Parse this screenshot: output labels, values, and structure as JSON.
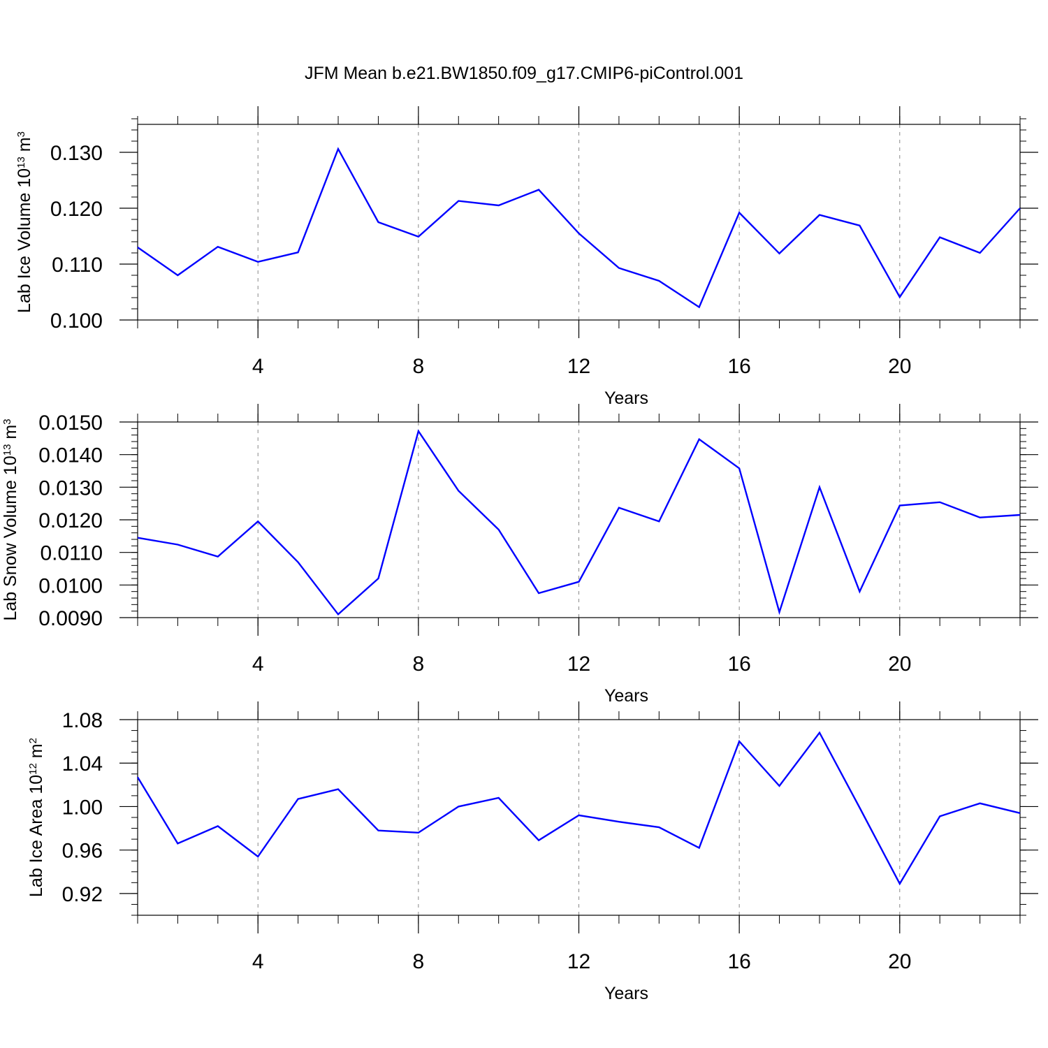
{
  "title": "JFM Mean b.e21.BW1850.f09_g17.CMIP6-piControl.001",
  "colors": {
    "line": "#0000ff",
    "axis": "#000000",
    "grid": "#888888",
    "background": "#ffffff"
  },
  "chart_data": [
    {
      "type": "line",
      "xlabel": "Years",
      "ylabel": {
        "text": "Lab Ice Volume 10",
        "exponent": "13",
        "unit": " m",
        "unit_exponent": "3"
      },
      "xlim": [
        1,
        23
      ],
      "ylim": [
        0.1,
        0.135
      ],
      "xticks": [
        4,
        8,
        12,
        16,
        20
      ],
      "xtick_labels": [
        "4",
        "8",
        "12",
        "16",
        "20"
      ],
      "yticks": [
        0.1,
        0.11,
        0.12,
        0.13
      ],
      "ytick_labels": [
        "0.100",
        "0.110",
        "0.120",
        "0.130"
      ],
      "y_minor_step": 0.002,
      "grid": "vertical dashed at major x ticks",
      "series": [
        {
          "x": [
            1,
            2,
            3,
            4,
            5,
            6,
            7,
            8,
            9,
            10,
            11,
            12,
            13,
            14,
            15,
            16,
            17,
            18,
            19,
            20,
            21,
            22,
            23
          ],
          "values": [
            0.113,
            0.108,
            0.1131,
            0.1104,
            0.1121,
            0.1306,
            0.1175,
            0.1149,
            0.1213,
            0.1205,
            0.1233,
            0.1155,
            0.1093,
            0.107,
            0.1023,
            0.1192,
            0.1119,
            0.1188,
            0.1169,
            0.1041,
            0.1148,
            0.112,
            0.12
          ]
        }
      ]
    },
    {
      "type": "line",
      "xlabel": "Years",
      "ylabel": {
        "text": "Lab Snow Volume 10",
        "exponent": "13",
        "unit": " m",
        "unit_exponent": "3"
      },
      "xlim": [
        1,
        23
      ],
      "ylim": [
        0.009,
        0.015
      ],
      "xticks": [
        4,
        8,
        12,
        16,
        20
      ],
      "xtick_labels": [
        "4",
        "8",
        "12",
        "16",
        "20"
      ],
      "yticks": [
        0.009,
        0.01,
        0.011,
        0.012,
        0.013,
        0.014,
        0.015
      ],
      "ytick_labels": [
        "0.0090",
        "0.0100",
        "0.0110",
        "0.0120",
        "0.0130",
        "0.0140",
        "0.0150"
      ],
      "y_minor_step": 0.0002,
      "grid": "vertical dashed at major x ticks",
      "series": [
        {
          "x": [
            1,
            2,
            3,
            4,
            5,
            6,
            7,
            8,
            9,
            10,
            11,
            12,
            13,
            14,
            15,
            16,
            17,
            18,
            19,
            20,
            21,
            22,
            23
          ],
          "values": [
            0.01145,
            0.01124,
            0.01087,
            0.01195,
            0.0107,
            0.0091,
            0.0102,
            0.01472,
            0.01289,
            0.0117,
            0.00975,
            0.0101,
            0.01237,
            0.01195,
            0.01447,
            0.01358,
            0.00917,
            0.013,
            0.0098,
            0.01244,
            0.01254,
            0.01207,
            0.01215
          ]
        }
      ]
    },
    {
      "type": "line",
      "xlabel": "Years",
      "ylabel": {
        "text": "Lab Ice Area 10",
        "exponent": "12",
        "unit": " m",
        "unit_exponent": "2"
      },
      "xlim": [
        1,
        23
      ],
      "ylim": [
        0.9,
        1.08
      ],
      "xticks": [
        4,
        8,
        12,
        16,
        20
      ],
      "xtick_labels": [
        "4",
        "8",
        "12",
        "16",
        "20"
      ],
      "yticks": [
        0.92,
        0.96,
        1.0,
        1.04,
        1.08
      ],
      "ytick_labels": [
        "0.92",
        "0.96",
        "1.00",
        "1.04",
        "1.08"
      ],
      "y_minor_step": 0.01,
      "grid": "vertical dashed at major x ticks",
      "series": [
        {
          "x": [
            1,
            2,
            3,
            4,
            5,
            6,
            7,
            8,
            9,
            10,
            11,
            12,
            13,
            14,
            15,
            16,
            17,
            18,
            19,
            20,
            21,
            22,
            23
          ],
          "values": [
            1.027,
            0.966,
            0.982,
            0.954,
            1.007,
            1.016,
            0.978,
            0.976,
            1.0,
            1.008,
            0.969,
            0.992,
            0.986,
            0.981,
            0.962,
            1.06,
            1.019,
            1.068,
            0.999,
            0.929,
            0.991,
            1.003,
            0.994
          ]
        }
      ]
    }
  ]
}
